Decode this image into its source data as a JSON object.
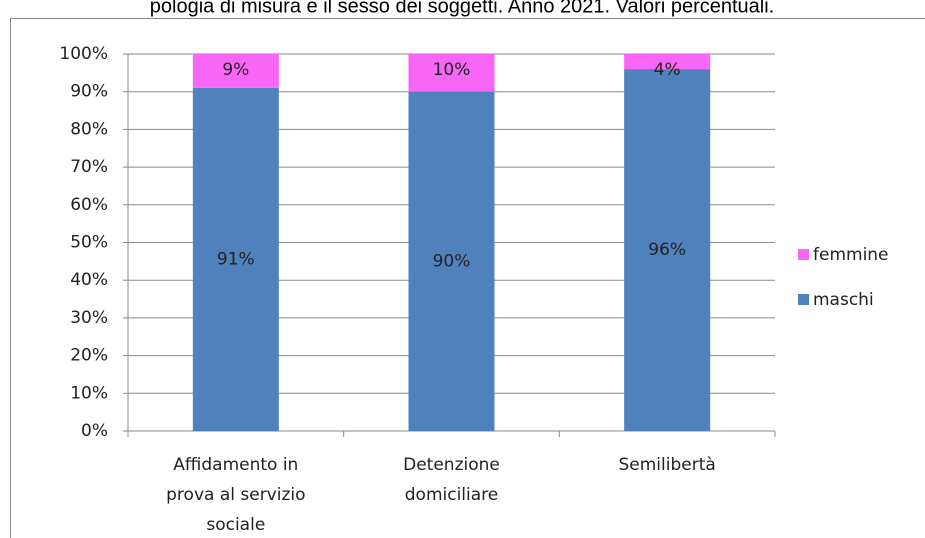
{
  "chart_data": {
    "type": "stacked_bar",
    "title": "pologia di misura e il sesso dei soggetti. Anno 2021. Valori percentuali.",
    "categories": [
      "Affidamento in prova al servizio sociale",
      "Detenzione domiciliare",
      "Semilibertà"
    ],
    "series": [
      {
        "name": "maschi",
        "color": "#4f81bd",
        "values": [
          91,
          90,
          96
        ],
        "value_labels": [
          "91%",
          "90%",
          "96%"
        ]
      },
      {
        "name": "femmine",
        "color": "#f866f6",
        "values": [
          9,
          10,
          4
        ],
        "value_labels": [
          "9%",
          "10%",
          "4%"
        ]
      }
    ],
    "ylim": [
      0,
      100
    ],
    "yticks": [
      {
        "value": 0,
        "label": "0%"
      },
      {
        "value": 10,
        "label": "10%"
      },
      {
        "value": 20,
        "label": "20%"
      },
      {
        "value": 30,
        "label": "30%"
      },
      {
        "value": 40,
        "label": "40%"
      },
      {
        "value": 50,
        "label": "50%"
      },
      {
        "value": 60,
        "label": "60%"
      },
      {
        "value": 70,
        "label": "70%"
      },
      {
        "value": 80,
        "label": "80%"
      },
      {
        "value": 90,
        "label": "90%"
      },
      {
        "value": 100,
        "label": "100%"
      }
    ],
    "grid": true,
    "legend": "right"
  }
}
